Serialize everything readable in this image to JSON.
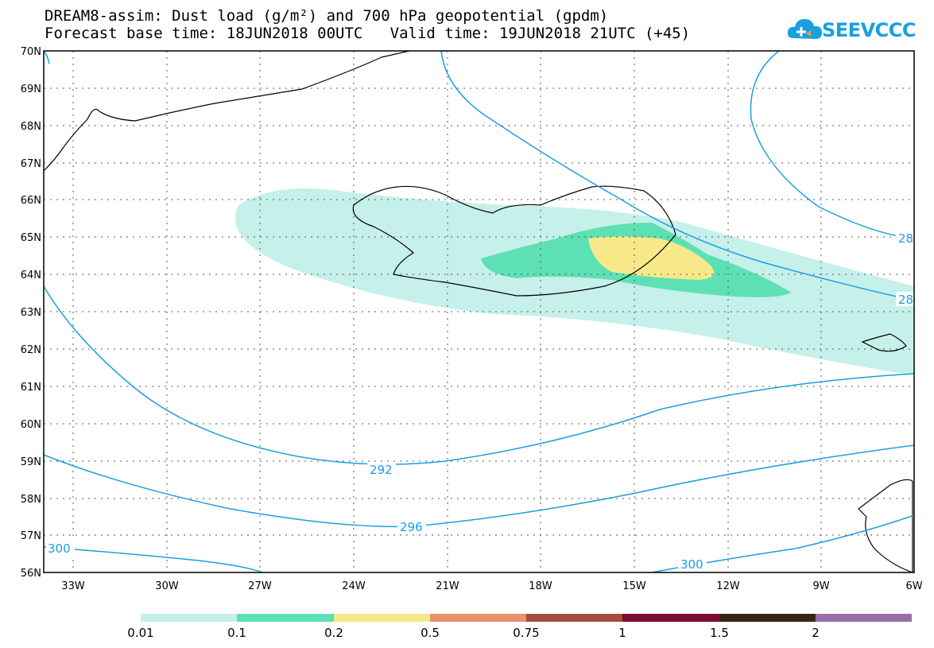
{
  "title_line1": "DREAM8-assim: Dust load (g/m²) and 700 hPa geopotential (gpdm)",
  "title_line2": "Forecast base time: 18JUN2018 00UTC   Valid time: 19JUN2018 21UTC (+45)",
  "logo_text": "SEEVCCC",
  "lat_labels": [
    "70N",
    "69N",
    "68N",
    "67N",
    "66N",
    "65N",
    "64N",
    "63N",
    "62N",
    "61N",
    "60N",
    "59N",
    "58N",
    "57N",
    "56N"
  ],
  "lon_labels": [
    "33W",
    "30W",
    "27W",
    "24W",
    "21W",
    "18W",
    "15W",
    "12W",
    "9W",
    "6W"
  ],
  "contour_labels": [
    "292",
    "292",
    "296",
    "300",
    "300",
    "28",
    "28"
  ],
  "colorbar": {
    "levels": [
      "0.01",
      "0.1",
      "0.2",
      "0.5",
      "0.75",
      "1",
      "1.5",
      "2"
    ],
    "colors": [
      "#c6f0ea",
      "#5ee0b5",
      "#f7e98a",
      "#e8916a",
      "#a34c40",
      "#7d0a30",
      "#3a2417",
      "#9a6fa8"
    ]
  },
  "colors": {
    "contour": "#1a9fe0",
    "coast": "#000000",
    "grid": "#555555"
  }
}
